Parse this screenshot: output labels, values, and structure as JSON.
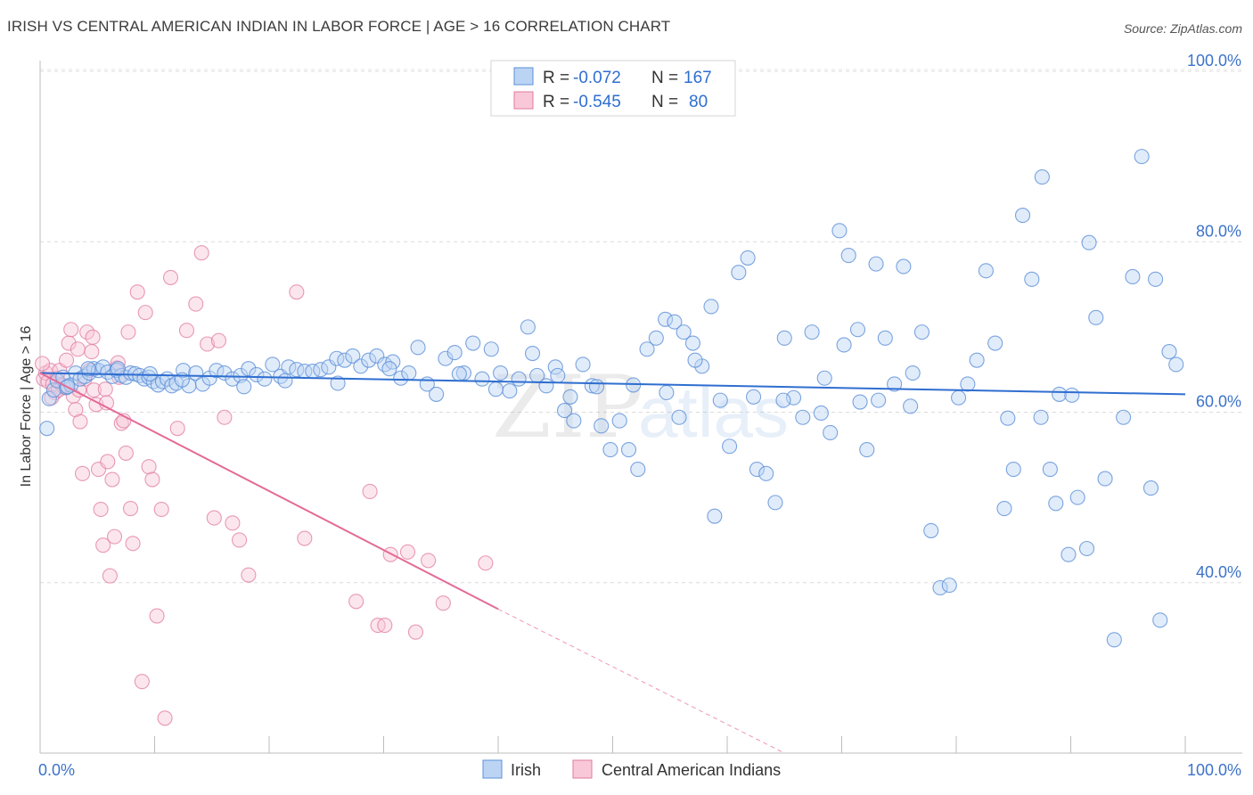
{
  "title": "IRISH VS CENTRAL AMERICAN INDIAN IN LABOR FORCE | AGE > 16 CORRELATION CHART",
  "source": "Source: ZipAtlas.com",
  "watermark": {
    "zip": "ZIP",
    "atlas": "atlas"
  },
  "legend": {
    "rows": [
      {
        "r_label": "R =",
        "r_value": "-0.072",
        "n_label": "N =",
        "n_value": "167",
        "color": "#a9c8f0",
        "edge": "#5b8fd8"
      },
      {
        "r_label": "R =",
        "r_value": "-0.545",
        "n_label": "N =",
        "n_value": "80",
        "color": "#f7bcd0",
        "edge": "#e07aa0"
      }
    ]
  },
  "bottom_legend": {
    "series1": "Irish",
    "series2": "Central American Indians"
  },
  "chart_data": {
    "type": "scatter",
    "title": "IRISH VS CENTRAL AMERICAN INDIAN IN LABOR FORCE | AGE > 16 CORRELATION CHART",
    "xlabel": "",
    "ylabel": "In Labor Force | Age > 16",
    "xlim": [
      0,
      100
    ],
    "ylim": [
      20,
      100
    ],
    "x_tick_labels": [
      "0.0%",
      "100.0%"
    ],
    "y_ticks": [
      40,
      60,
      80,
      100
    ],
    "y_tick_labels": [
      "40.0%",
      "60.0%",
      "80.0%",
      "100.0%"
    ],
    "grid": true,
    "colors": {
      "irish": "#5b8fd8",
      "irish_fill": "#bcd4f4",
      "cai": "#e07aa0",
      "cai_fill": "#f8c8d8",
      "irish_line": "#2f6ed0",
      "cai_line": "#e46a96"
    },
    "series": [
      {
        "name": "Irish",
        "r": -0.072,
        "n": 167,
        "trend": {
          "x": [
            0,
            100
          ],
          "y": [
            64.6,
            62.1
          ]
        },
        "points": [
          [
            0.6,
            58.1
          ],
          [
            0.8,
            61.6
          ],
          [
            1.2,
            62.6
          ],
          [
            1.5,
            63.7
          ],
          [
            2.0,
            64.1
          ],
          [
            2.3,
            62.9
          ],
          [
            2.7,
            63.2
          ],
          [
            3.1,
            64.6
          ],
          [
            3.5,
            63.9
          ],
          [
            3.9,
            64.2
          ],
          [
            4.3,
            64.6
          ],
          [
            4.7,
            65.1
          ],
          [
            5.1,
            64.9
          ],
          [
            5.5,
            65.3
          ],
          [
            5.9,
            64.7
          ],
          [
            6.3,
            64.2
          ],
          [
            6.7,
            64.9
          ],
          [
            7.1,
            64.3
          ],
          [
            7.5,
            64.1
          ],
          [
            7.9,
            64.6
          ],
          [
            8.3,
            64.5
          ],
          [
            8.7,
            64.3
          ],
          [
            9.1,
            63.9
          ],
          [
            9.5,
            64.1
          ],
          [
            9.9,
            63.6
          ],
          [
            10.3,
            63.2
          ],
          [
            10.7,
            63.6
          ],
          [
            11.1,
            63.9
          ],
          [
            11.5,
            63.1
          ],
          [
            11.9,
            63.4
          ],
          [
            12.5,
            64.9
          ],
          [
            13.0,
            63.1
          ],
          [
            13.6,
            64.6
          ],
          [
            14.2,
            63.3
          ],
          [
            14.8,
            64.0
          ],
          [
            15.4,
            64.9
          ],
          [
            16.1,
            64.6
          ],
          [
            16.8,
            63.9
          ],
          [
            17.5,
            64.3
          ],
          [
            18.2,
            65.1
          ],
          [
            18.9,
            64.4
          ],
          [
            19.6,
            63.9
          ],
          [
            20.3,
            65.6
          ],
          [
            21.0,
            64.2
          ],
          [
            21.7,
            65.3
          ],
          [
            22.4,
            65.0
          ],
          [
            23.1,
            64.8
          ],
          [
            23.8,
            64.8
          ],
          [
            24.5,
            65.0
          ],
          [
            25.2,
            65.3
          ],
          [
            25.9,
            66.3
          ],
          [
            26.6,
            66.1
          ],
          [
            27.3,
            66.6
          ],
          [
            28.0,
            65.4
          ],
          [
            28.7,
            66.1
          ],
          [
            29.4,
            66.6
          ],
          [
            30.1,
            65.6
          ],
          [
            30.8,
            65.9
          ],
          [
            31.5,
            64.0
          ],
          [
            32.2,
            64.6
          ],
          [
            33.0,
            67.6
          ],
          [
            33.8,
            63.3
          ],
          [
            34.6,
            62.1
          ],
          [
            35.4,
            66.3
          ],
          [
            36.2,
            67.0
          ],
          [
            37.0,
            64.6
          ],
          [
            37.8,
            68.1
          ],
          [
            38.6,
            63.9
          ],
          [
            39.4,
            67.4
          ],
          [
            40.2,
            64.6
          ],
          [
            41.0,
            62.5
          ],
          [
            41.8,
            63.9
          ],
          [
            42.6,
            70.0
          ],
          [
            43.4,
            64.3
          ],
          [
            44.2,
            63.1
          ],
          [
            45.0,
            65.3
          ],
          [
            45.8,
            60.2
          ],
          [
            46.6,
            59.0
          ],
          [
            47.4,
            65.6
          ],
          [
            48.2,
            63.1
          ],
          [
            49.0,
            58.4
          ],
          [
            49.8,
            55.6
          ],
          [
            50.6,
            59.0
          ],
          [
            51.4,
            55.6
          ],
          [
            52.2,
            53.3
          ],
          [
            53.0,
            67.4
          ],
          [
            53.8,
            68.7
          ],
          [
            54.6,
            70.9
          ],
          [
            55.4,
            70.6
          ],
          [
            56.2,
            69.4
          ],
          [
            57.0,
            68.1
          ],
          [
            57.8,
            65.4
          ],
          [
            58.6,
            72.4
          ],
          [
            59.4,
            61.4
          ],
          [
            60.2,
            56.0
          ],
          [
            61.0,
            76.4
          ],
          [
            61.8,
            78.1
          ],
          [
            62.6,
            53.3
          ],
          [
            63.4,
            52.8
          ],
          [
            64.2,
            49.4
          ],
          [
            65.0,
            68.7
          ],
          [
            65.8,
            61.7
          ],
          [
            66.6,
            59.4
          ],
          [
            67.4,
            69.4
          ],
          [
            68.2,
            59.9
          ],
          [
            69.0,
            57.6
          ],
          [
            69.8,
            81.3
          ],
          [
            70.6,
            78.4
          ],
          [
            71.4,
            69.7
          ],
          [
            72.2,
            55.6
          ],
          [
            73.0,
            77.4
          ],
          [
            73.8,
            68.7
          ],
          [
            74.6,
            63.3
          ],
          [
            75.4,
            77.1
          ],
          [
            76.2,
            64.6
          ],
          [
            77.0,
            69.4
          ],
          [
            77.8,
            46.1
          ],
          [
            78.6,
            39.4
          ],
          [
            79.4,
            39.7
          ],
          [
            80.2,
            61.7
          ],
          [
            81.0,
            63.3
          ],
          [
            81.8,
            66.1
          ],
          [
            82.6,
            76.6
          ],
          [
            83.4,
            68.1
          ],
          [
            84.2,
            48.7
          ],
          [
            85.0,
            53.3
          ],
          [
            85.8,
            83.1
          ],
          [
            86.6,
            75.6
          ],
          [
            87.4,
            59.4
          ],
          [
            88.2,
            53.3
          ],
          [
            89.0,
            62.1
          ],
          [
            89.8,
            43.3
          ],
          [
            90.6,
            50.0
          ],
          [
            91.4,
            44.0
          ],
          [
            92.2,
            71.1
          ],
          [
            93.0,
            52.2
          ],
          [
            93.8,
            33.3
          ],
          [
            94.6,
            59.4
          ],
          [
            95.4,
            75.9
          ],
          [
            96.2,
            90.0
          ],
          [
            97.0,
            51.1
          ],
          [
            97.8,
            35.6
          ],
          [
            98.6,
            67.1
          ],
          [
            99.2,
            65.6
          ],
          [
            87.5,
            87.6
          ],
          [
            91.6,
            79.9
          ],
          [
            97.4,
            75.6
          ],
          [
            90.1,
            62.0
          ],
          [
            73.2,
            61.4
          ],
          [
            64.9,
            61.4
          ],
          [
            68.5,
            64.0
          ],
          [
            71.6,
            61.2
          ],
          [
            57.2,
            66.1
          ],
          [
            54.7,
            62.3
          ],
          [
            51.8,
            63.2
          ],
          [
            46.3,
            61.8
          ],
          [
            43.0,
            66.9
          ],
          [
            39.8,
            62.7
          ],
          [
            36.6,
            64.5
          ],
          [
            30.5,
            65.1
          ],
          [
            26.0,
            63.4
          ],
          [
            21.4,
            63.7
          ],
          [
            17.8,
            63.0
          ],
          [
            12.4,
            63.8
          ],
          [
            9.6,
            64.5
          ],
          [
            6.8,
            65.1
          ],
          [
            4.2,
            65.1
          ],
          [
            2.4,
            63.0
          ],
          [
            88.7,
            49.3
          ],
          [
            84.5,
            59.3
          ],
          [
            76.0,
            60.7
          ],
          [
            70.2,
            67.9
          ],
          [
            62.3,
            61.8
          ],
          [
            58.9,
            47.8
          ],
          [
            55.8,
            59.4
          ],
          [
            48.6,
            63.0
          ],
          [
            45.2,
            64.3
          ]
        ]
      },
      {
        "name": "Central American Indians",
        "r": -0.545,
        "n": 80,
        "trend": {
          "x": [
            0,
            40
          ],
          "y": [
            64.6,
            36.9
          ]
        },
        "trend_dashed": {
          "x": [
            40,
            65
          ],
          "y": [
            36.9,
            20.0
          ]
        },
        "points": [
          [
            0.3,
            63.9
          ],
          [
            0.5,
            64.6
          ],
          [
            0.7,
            63.6
          ],
          [
            0.9,
            64.9
          ],
          [
            1.1,
            63.3
          ],
          [
            1.3,
            62.3
          ],
          [
            1.5,
            64.0
          ],
          [
            1.7,
            64.9
          ],
          [
            1.9,
            63.2
          ],
          [
            2.1,
            62.9
          ],
          [
            2.3,
            66.1
          ],
          [
            2.5,
            68.1
          ],
          [
            2.7,
            69.7
          ],
          [
            2.9,
            61.9
          ],
          [
            3.1,
            60.3
          ],
          [
            3.3,
            67.4
          ],
          [
            3.5,
            58.9
          ],
          [
            3.7,
            52.8
          ],
          [
            3.9,
            63.9
          ],
          [
            4.1,
            69.4
          ],
          [
            4.3,
            64.9
          ],
          [
            4.5,
            67.1
          ],
          [
            4.7,
            62.6
          ],
          [
            4.9,
            60.9
          ],
          [
            5.1,
            53.3
          ],
          [
            5.3,
            48.6
          ],
          [
            5.5,
            44.4
          ],
          [
            5.7,
            62.7
          ],
          [
            5.9,
            54.2
          ],
          [
            6.1,
            40.8
          ],
          [
            6.3,
            52.1
          ],
          [
            6.5,
            45.4
          ],
          [
            6.7,
            65.2
          ],
          [
            6.9,
            64.1
          ],
          [
            7.1,
            58.7
          ],
          [
            7.3,
            59.0
          ],
          [
            7.5,
            55.2
          ],
          [
            7.7,
            69.4
          ],
          [
            7.9,
            48.7
          ],
          [
            8.1,
            44.6
          ],
          [
            8.5,
            74.1
          ],
          [
            8.9,
            28.4
          ],
          [
            9.2,
            71.7
          ],
          [
            9.5,
            53.6
          ],
          [
            9.8,
            52.1
          ],
          [
            10.2,
            36.1
          ],
          [
            10.6,
            48.6
          ],
          [
            10.9,
            24.1
          ],
          [
            11.4,
            75.8
          ],
          [
            12.0,
            58.1
          ],
          [
            12.8,
            69.6
          ],
          [
            13.6,
            72.7
          ],
          [
            14.1,
            78.7
          ],
          [
            14.6,
            68.0
          ],
          [
            15.2,
            47.6
          ],
          [
            15.6,
            68.4
          ],
          [
            16.1,
            59.4
          ],
          [
            16.8,
            47.0
          ],
          [
            17.4,
            45.0
          ],
          [
            18.2,
            40.9
          ],
          [
            22.4,
            74.1
          ],
          [
            23.1,
            45.2
          ],
          [
            27.6,
            37.8
          ],
          [
            28.8,
            50.7
          ],
          [
            29.5,
            35.0
          ],
          [
            30.1,
            35.0
          ],
          [
            30.6,
            43.3
          ],
          [
            32.1,
            43.6
          ],
          [
            32.8,
            34.2
          ],
          [
            33.9,
            42.6
          ],
          [
            35.2,
            37.6
          ],
          [
            38.9,
            42.3
          ],
          [
            0.2,
            65.7
          ],
          [
            1.0,
            61.7
          ],
          [
            2.0,
            63.1
          ],
          [
            4.6,
            68.8
          ],
          [
            6.8,
            65.8
          ],
          [
            5.8,
            61.1
          ],
          [
            3.4,
            62.6
          ],
          [
            1.6,
            62.6
          ]
        ]
      }
    ]
  }
}
